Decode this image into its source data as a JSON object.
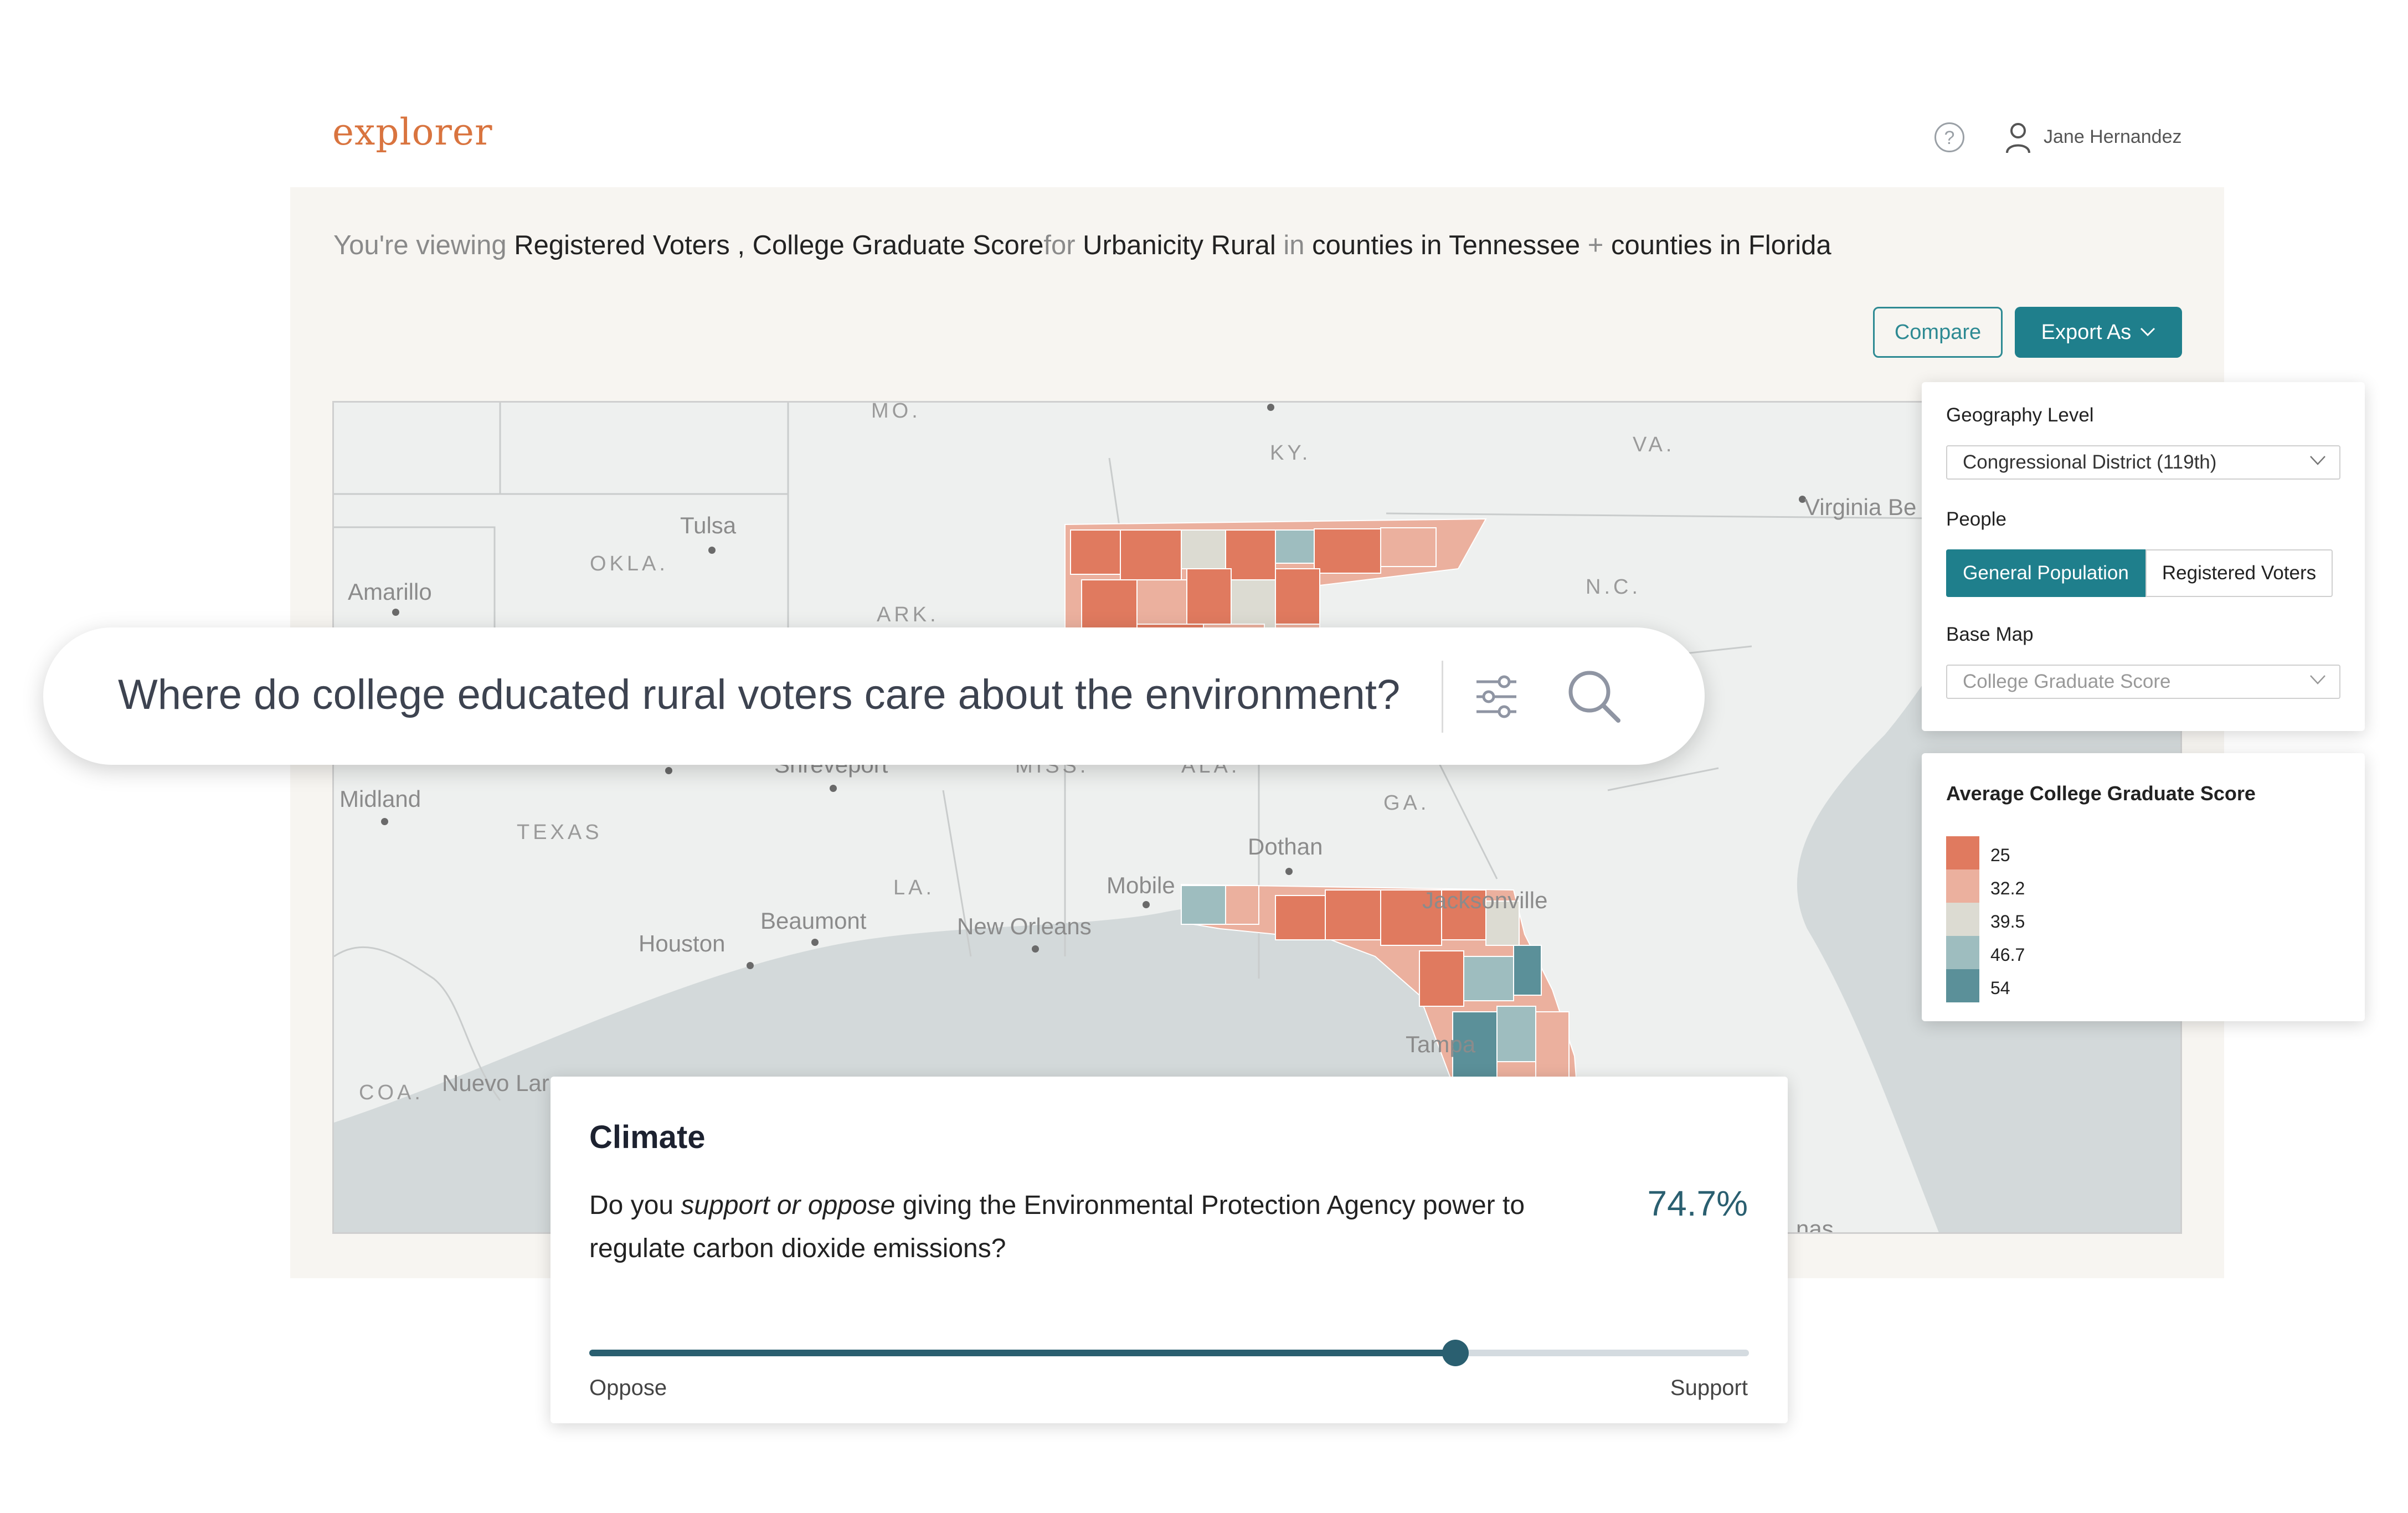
{
  "app": {
    "brand": "explorer",
    "user_name": "Jane Hernandez"
  },
  "header": {
    "help_icon": "question-circle-icon",
    "user_icon": "user-icon"
  },
  "viewing": {
    "prefix": "You're viewing",
    "people": "Registered Voters",
    "sep1": ",",
    "metric": "College Graduate Score",
    "for": "for",
    "filter": "Urbanicity Rural",
    "in": "in",
    "geo1": "counties in Tennessee",
    "plus": "+",
    "geo2": "counties in Florida"
  },
  "actions": {
    "compare": "Compare",
    "export": "Export As"
  },
  "map_labels": {
    "mo": "MO.",
    "ky": "KY.",
    "va": "VA.",
    "virginia_beach": "Virginia Be",
    "tulsa": "Tulsa",
    "okla": "OKLA.",
    "amarillo": "Amarillo",
    "nc": "N.C.",
    "ark": "ARK.",
    "shreveport": "Shreveport",
    "miss": "MISS.",
    "ala": "ALA.",
    "midland": "Midland",
    "texas": "TEXAS",
    "ga": "GA.",
    "dothan": "Dothan",
    "la": "LA.",
    "mobile": "Mobile",
    "jacksonville": "Jacksonville",
    "houston": "Houston",
    "beaumont": "Beaumont",
    "new_orleans": "New Orleans",
    "tampa": "Tampa",
    "coa": "COA.",
    "nuevo_laredo": "Nuevo Lar",
    "nas": "nas"
  },
  "search": {
    "query": "Where do college educated rural voters care about the environment?",
    "filter_icon": "sliders-icon",
    "search_icon": "search-icon"
  },
  "settings": {
    "geography_label": "Geography Level",
    "geography_value": "Congressional District (119th)",
    "people_label": "People",
    "people_options": [
      "General Population",
      "Registered Voters"
    ],
    "people_selected": "General Population",
    "basemap_label": "Base Map",
    "basemap_value": "College Graduate Score"
  },
  "legend": {
    "title": "Average College Graduate Score",
    "items": [
      {
        "label": "25",
        "color": "#e07a5f"
      },
      {
        "label": "32.2",
        "color": "#ebb09e"
      },
      {
        "label": "39.5",
        "color": "#dcdbd2"
      },
      {
        "label": "46.7",
        "color": "#9ebdbf"
      },
      {
        "label": "54",
        "color": "#5b9099"
      }
    ]
  },
  "climate": {
    "title": "Climate",
    "question_start": "Do you ",
    "question_em": "support or oppose",
    "question_end": " giving the Environmental Protection Agency power to regulate carbon dioxide emissions?",
    "percent": "74.7%",
    "support_fraction": 0.747,
    "left_label": "Oppose",
    "right_label": "Support"
  },
  "colors": {
    "accent": "#1f7f8c",
    "brand": "#d9743f",
    "slider": "#2a5f70"
  }
}
